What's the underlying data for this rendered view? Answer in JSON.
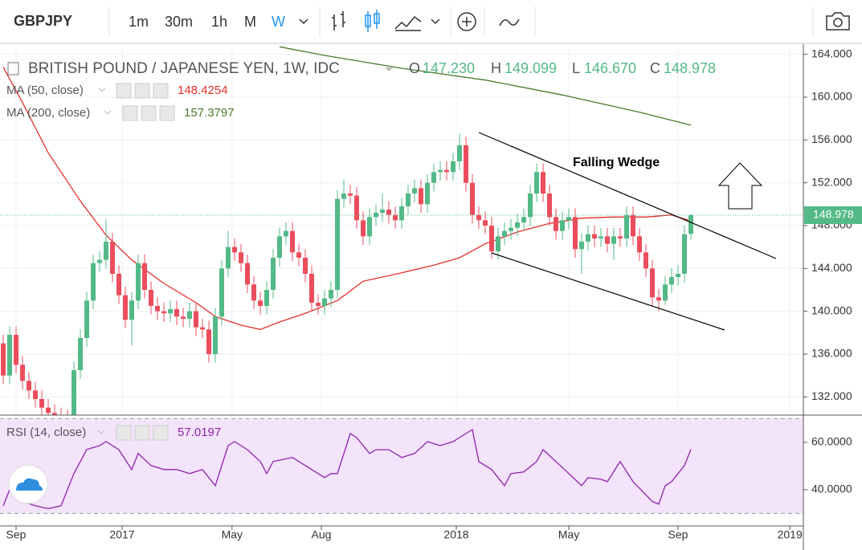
{
  "toolbar": {
    "symbol": "GBPJPY",
    "intervals": [
      "1m",
      "30m",
      "1h",
      "M",
      "W"
    ]
  },
  "chart_data": [
    {
      "type": "candlestick",
      "title": "BRITISH POUND / JAPANESE YEN, 1W, IDC",
      "ohlc_labels": [
        "O",
        "H",
        "L",
        "C"
      ],
      "last_bar_labels": [
        "147.230",
        "149.099",
        "146.670",
        "148.978"
      ],
      "up_color": "#53b987",
      "down_color": "#eb4d5c",
      "open": [
        137.0,
        134.0,
        137.8,
        135.0,
        133.5,
        132.6,
        131.8,
        131.0,
        130.5,
        130.2,
        130.0,
        129.8,
        134.5,
        137.5,
        141.0,
        144.5,
        144.8,
        146.5,
        143.5,
        141.5,
        139.2,
        141.0,
        144.5,
        142.0,
        140.5,
        140.0,
        139.8,
        140.2,
        139.5,
        139.3,
        140.0,
        138.5,
        138.3,
        136.0,
        139.5,
        144.0,
        146.0,
        145.5,
        144.5,
        142.5,
        141.0,
        140.5,
        142.0,
        145.0,
        147.0,
        147.5,
        145.5,
        145.0,
        143.5,
        140.8,
        140.5,
        141.2,
        142.0,
        150.5,
        151.0,
        150.8,
        148.5,
        147.0,
        148.8,
        149.2,
        149.5,
        149.0,
        148.5,
        149.8,
        151.0,
        151.5,
        150.0,
        152.0,
        153.0,
        153.2,
        153.0,
        154.0,
        155.5,
        152.0,
        149.0,
        148.5,
        148.0,
        145.6,
        147.0,
        147.5,
        147.8,
        148.3,
        148.8,
        151.0,
        153.0,
        151.0,
        148.8,
        147.5,
        148.5,
        148.8,
        145.8,
        146.5,
        147.2,
        146.8,
        147.0,
        146.3,
        147.0,
        146.8,
        149.0,
        147.0,
        145.5,
        144.0,
        141.3,
        141.0,
        142.5,
        143.2,
        143.5,
        147.23
      ],
      "high": [
        137.8,
        138.6,
        138.6,
        135.8,
        134.3,
        133.4,
        132.6,
        131.8,
        131.3,
        131.0,
        130.8,
        135.3,
        138.3,
        141.8,
        145.3,
        145.6,
        148.6,
        147.3,
        144.3,
        142.3,
        141.8,
        145.3,
        145.3,
        142.8,
        141.3,
        140.8,
        141.0,
        141.0,
        140.3,
        140.8,
        140.8,
        139.3,
        139.1,
        140.3,
        144.8,
        147.5,
        146.8,
        146.3,
        145.3,
        143.3,
        141.8,
        142.8,
        145.8,
        147.8,
        148.3,
        148.3,
        146.3,
        145.8,
        144.3,
        141.6,
        142.0,
        142.8,
        151.3,
        152.3,
        151.8,
        151.6,
        149.3,
        149.6,
        150.0,
        151.0,
        150.3,
        149.8,
        150.6,
        151.8,
        152.3,
        152.3,
        152.8,
        153.8,
        154.0,
        154.0,
        154.8,
        156.6,
        156.3,
        152.8,
        149.8,
        149.3,
        148.8,
        147.8,
        148.3,
        148.6,
        149.1,
        149.6,
        151.8,
        153.8,
        153.8,
        151.8,
        149.6,
        149.3,
        149.6,
        149.6,
        147.3,
        148.0,
        148.0,
        147.8,
        147.8,
        147.8,
        147.8,
        149.8,
        149.8,
        147.8,
        146.3,
        144.8,
        142.1,
        143.3,
        144.0,
        144.3,
        148.0,
        149.099
      ],
      "low": [
        133.2,
        133.2,
        134.2,
        132.7,
        131.8,
        131.0,
        130.2,
        129.7,
        129.4,
        129.2,
        129.0,
        129.0,
        133.7,
        136.7,
        140.2,
        143.7,
        144.0,
        142.7,
        140.7,
        138.4,
        136.8,
        140.2,
        141.2,
        139.7,
        139.2,
        139.0,
        139.0,
        138.7,
        138.5,
        138.5,
        137.7,
        137.5,
        135.2,
        135.2,
        138.7,
        143.2,
        144.7,
        143.7,
        141.7,
        140.2,
        139.7,
        139.7,
        141.2,
        144.2,
        146.2,
        144.7,
        144.2,
        142.7,
        140.0,
        139.7,
        139.7,
        140.4,
        141.2,
        149.7,
        150.0,
        147.7,
        146.2,
        146.2,
        148.0,
        148.4,
        148.2,
        147.7,
        147.7,
        149.0,
        150.2,
        149.2,
        149.2,
        151.2,
        152.2,
        152.2,
        152.2,
        153.2,
        151.2,
        148.2,
        147.7,
        147.2,
        144.9,
        144.8,
        146.2,
        146.7,
        147.0,
        147.5,
        148.0,
        150.2,
        150.2,
        148.0,
        146.7,
        146.7,
        147.7,
        145.0,
        143.5,
        145.7,
        146.0,
        146.0,
        145.5,
        144.8,
        146.0,
        146.0,
        146.2,
        144.7,
        143.2,
        140.5,
        140.0,
        140.6,
        141.7,
        142.4,
        142.7,
        146.67
      ],
      "close": [
        134.0,
        137.8,
        135.0,
        133.5,
        132.6,
        131.8,
        131.0,
        130.5,
        130.2,
        130.0,
        129.8,
        134.5,
        137.5,
        141.0,
        144.5,
        144.8,
        146.5,
        143.5,
        141.5,
        139.2,
        141.0,
        144.5,
        142.0,
        140.5,
        140.0,
        139.8,
        140.2,
        139.5,
        139.3,
        140.0,
        138.5,
        138.3,
        136.0,
        139.5,
        144.0,
        146.0,
        145.5,
        144.5,
        142.5,
        141.0,
        140.5,
        142.0,
        145.0,
        147.0,
        147.5,
        145.5,
        145.0,
        143.5,
        140.8,
        140.5,
        141.2,
        142.0,
        150.5,
        151.0,
        150.8,
        148.5,
        147.0,
        148.8,
        149.2,
        149.5,
        149.0,
        148.5,
        149.8,
        151.0,
        151.5,
        150.0,
        152.0,
        153.0,
        153.2,
        153.0,
        154.0,
        155.5,
        152.0,
        149.0,
        148.5,
        148.0,
        145.6,
        147.0,
        147.5,
        147.8,
        148.3,
        148.8,
        151.0,
        153.0,
        151.0,
        148.8,
        147.5,
        148.5,
        148.8,
        145.8,
        146.5,
        147.2,
        146.8,
        147.0,
        146.3,
        147.0,
        146.8,
        149.0,
        147.0,
        145.5,
        144.0,
        141.3,
        141.0,
        142.5,
        143.2,
        143.5,
        147.2,
        148.978
      ],
      "overlays": [
        {
          "name": "MA (50, close)",
          "color": "#e3302c",
          "x": [
            0,
            3,
            7,
            12,
            16,
            20,
            25,
            30,
            33,
            37,
            40,
            43,
            47,
            52,
            56,
            62,
            67,
            71,
            75,
            80,
            85,
            90,
            95,
            100,
            104,
            107
          ],
          "values": [
            162.8,
            159.5,
            154.8,
            150.3,
            147.1,
            144.8,
            142.6,
            140.8,
            139.5,
            138.7,
            138.3,
            139.0,
            139.8,
            141.0,
            142.8,
            143.6,
            144.3,
            145.0,
            146.3,
            147.4,
            148.2,
            148.7,
            148.8,
            148.8,
            149.0,
            148.4254
          ]
        },
        {
          "name": "MA (200, close)",
          "color": "#4b7b2b",
          "x": [
            43,
            50,
            62,
            75,
            87,
            99,
            107
          ],
          "values": [
            164.7,
            163.9,
            162.7,
            161.6,
            160.2,
            158.6,
            157.3797
          ]
        }
      ],
      "annotations": [
        "Falling Wedge"
      ],
      "xlim": [
        -0.5,
        124.5
      ],
      "ylim": [
        130.3,
        164.8
      ],
      "xticks": [
        {
          "value": 2,
          "label": "Sep"
        },
        {
          "value": 18.5,
          "label": "2017"
        },
        {
          "value": 35.6,
          "label": "May"
        },
        {
          "value": 49.5,
          "label": "Aug"
        },
        {
          "value": 70.5,
          "label": "2018"
        },
        {
          "value": 88,
          "label": "May"
        },
        {
          "value": 105,
          "label": "Sep"
        },
        {
          "value": 122.4,
          "label": "2019"
        }
      ],
      "yticks": [
        {
          "value": 132,
          "label": "132.000"
        },
        {
          "value": 136,
          "label": "136.000"
        },
        {
          "value": 140,
          "label": "140.000"
        },
        {
          "value": 144,
          "label": "144.000"
        },
        {
          "value": 148,
          "label": "148.000"
        },
        {
          "value": 152,
          "label": "152.000"
        },
        {
          "value": 156,
          "label": "156.000"
        },
        {
          "value": 160,
          "label": "160.000"
        },
        {
          "value": 164,
          "label": "164.000"
        }
      ],
      "grid": true
    },
    {
      "type": "line",
      "name": "RSI (14, close)",
      "color": "#8e24aa",
      "x": [
        0,
        1,
        2,
        3,
        5,
        7,
        9,
        10,
        11,
        13,
        15,
        16,
        18,
        20,
        21,
        23,
        25,
        27,
        29,
        31,
        33,
        34,
        35,
        36,
        38,
        40,
        41,
        42,
        45,
        47,
        49,
        50,
        51,
        52,
        54,
        55,
        57,
        58,
        60,
        62,
        64,
        66,
        68,
        70,
        71,
        73,
        74,
        76,
        78,
        79,
        81,
        83,
        84,
        86,
        88,
        90,
        91,
        93,
        94,
        96,
        98,
        101,
        102,
        103,
        104,
        105,
        106,
        107
      ],
      "values": [
        33.2,
        40.0,
        38.3,
        35.0,
        33.2,
        32.0,
        33.2,
        40.0,
        46.8,
        57.0,
        58.6,
        60.3,
        56.9,
        48.5,
        55.3,
        50.2,
        48.5,
        48.5,
        46.8,
        48.5,
        41.7,
        50.2,
        58.6,
        60.3,
        56.9,
        51.9,
        46.8,
        51.9,
        53.6,
        50.2,
        46.8,
        45.1,
        46.8,
        46.8,
        63.7,
        62.0,
        55.3,
        56.9,
        56.9,
        53.6,
        55.3,
        60.3,
        58.6,
        60.3,
        62.0,
        65.4,
        51.9,
        48.5,
        41.7,
        46.8,
        47.5,
        51.9,
        56.9,
        51.9,
        46.8,
        41.7,
        45.1,
        44.4,
        43.4,
        51.9,
        43.4,
        35.0,
        33.9,
        41.7,
        43.4,
        46.8,
        50.2,
        57.0197
      ],
      "bands": [
        30,
        70
      ],
      "band_color": "#f3e3fb",
      "ylim": [
        24.7,
        71.5
      ],
      "yticks": [
        {
          "value": 40,
          "label": "40.0000"
        },
        {
          "value": 60,
          "label": "60.0000"
        }
      ]
    }
  ]
}
